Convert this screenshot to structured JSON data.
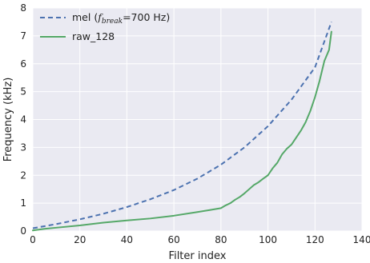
{
  "chart_data": {
    "type": "line",
    "title": "",
    "xlabel": "Filter index",
    "ylabel": "Frequency (kHz)",
    "xlim": [
      0,
      140
    ],
    "ylim": [
      0,
      8
    ],
    "xticks": [
      0,
      20,
      40,
      60,
      80,
      100,
      120,
      140
    ],
    "yticks": [
      0,
      1,
      2,
      3,
      4,
      5,
      6,
      7,
      8
    ],
    "grid": true,
    "legend_position": "top-left",
    "background_color": "#eaeaf2",
    "series": [
      {
        "name": "mel (f_break=700 Hz)",
        "legend_prefix": "mel (",
        "legend_f": "f",
        "legend_sub": "break",
        "legend_suffix": "=700 Hz)",
        "style": "dashed",
        "color": "#4c72b0",
        "x": [
          0,
          10,
          20,
          30,
          40,
          50,
          60,
          70,
          80,
          90,
          100,
          110,
          120,
          127
        ],
        "y": [
          0.1,
          0.25,
          0.42,
          0.62,
          0.86,
          1.14,
          1.47,
          1.88,
          2.38,
          3.0,
          3.76,
          4.71,
          5.87,
          7.5
        ]
      },
      {
        "name": "raw_128",
        "style": "solid",
        "color": "#55a868",
        "x": [
          0,
          5,
          10,
          20,
          30,
          40,
          50,
          60,
          70,
          75,
          80,
          82,
          84,
          86,
          88,
          90,
          92,
          94,
          96,
          98,
          100,
          102,
          104,
          106,
          108,
          110,
          112,
          114,
          116,
          118,
          120,
          122,
          124,
          126,
          127
        ],
        "y": [
          0.02,
          0.08,
          0.12,
          0.2,
          0.3,
          0.38,
          0.45,
          0.55,
          0.68,
          0.75,
          0.82,
          0.92,
          1.0,
          1.12,
          1.22,
          1.35,
          1.5,
          1.65,
          1.75,
          1.88,
          2.0,
          2.25,
          2.45,
          2.75,
          2.95,
          3.1,
          3.35,
          3.6,
          3.9,
          4.3,
          4.8,
          5.4,
          6.1,
          6.5,
          7.15
        ]
      }
    ]
  }
}
